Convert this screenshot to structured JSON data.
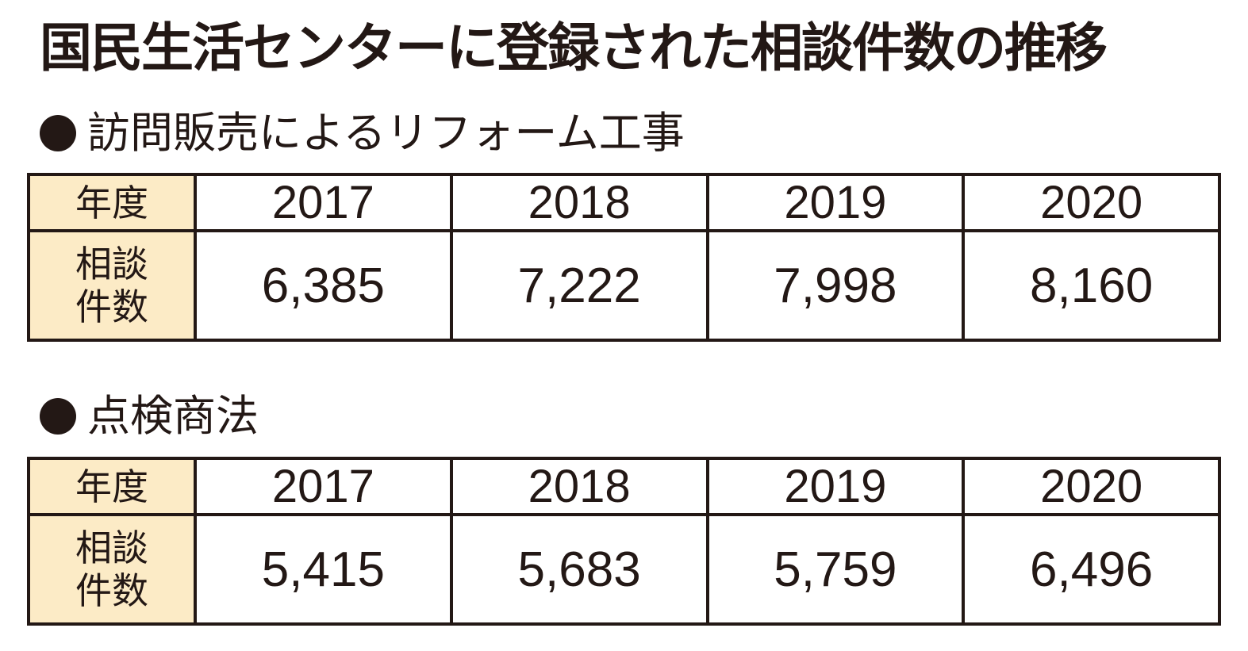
{
  "title": "国民生活センターに登録された相談件数の推移",
  "sections": [
    {
      "heading": "訪問販売によるリフォーム工事",
      "row_labels": {
        "year": "年度",
        "count": "相談件数"
      },
      "years": [
        "2017",
        "2018",
        "2019",
        "2020"
      ],
      "counts": [
        "6,385",
        "7,222",
        "7,998",
        "8,160"
      ]
    },
    {
      "heading": "点検商法",
      "row_labels": {
        "year": "年度",
        "count": "相談件数"
      },
      "years": [
        "2017",
        "2018",
        "2019",
        "2020"
      ],
      "counts": [
        "5,415",
        "5,683",
        "5,759",
        "6,496"
      ]
    }
  ],
  "chart_data": [
    {
      "type": "table",
      "title": "訪問販売によるリフォーム工事",
      "columns": [
        "年度",
        "2017",
        "2018",
        "2019",
        "2020"
      ],
      "rows": [
        [
          "相談件数",
          6385,
          7222,
          7998,
          8160
        ]
      ]
    },
    {
      "type": "table",
      "title": "点検商法",
      "columns": [
        "年度",
        "2017",
        "2018",
        "2019",
        "2020"
      ],
      "rows": [
        [
          "相談件数",
          5415,
          5683,
          5759,
          6496
        ]
      ]
    }
  ],
  "colors": {
    "header_fill": "#fcebc6",
    "ink": "#231815"
  }
}
